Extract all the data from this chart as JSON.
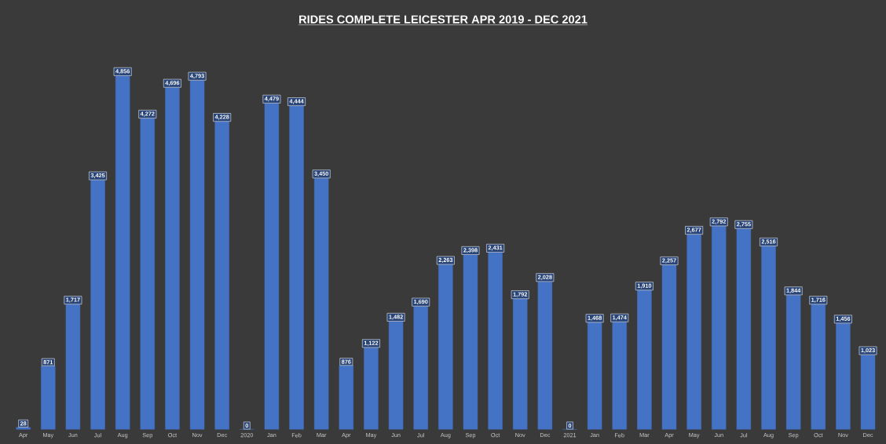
{
  "chart_data": {
    "type": "bar",
    "title": "RIDES COMPLETE LEICESTER APR 2019 - DEC 2021",
    "categories": [
      "Apr",
      "May",
      "Jun",
      "Jul",
      "Aug",
      "Sep",
      "Oct",
      "Nov",
      "Dec",
      "2020",
      "Jan",
      "Feb",
      "Mar",
      "Apr",
      "May",
      "Jun",
      "Jul",
      "Aug",
      "Sep",
      "Oct",
      "Nov",
      "Dec",
      "2021",
      "Jan",
      "Feb",
      "Mar",
      "Apr",
      "May",
      "Jun",
      "Jul",
      "Aug",
      "Sep",
      "Oct",
      "Nov",
      "Dec"
    ],
    "values": [
      28,
      871,
      1717,
      3425,
      4856,
      4272,
      4696,
      4793,
      4228,
      0,
      4479,
      4444,
      3450,
      876,
      1122,
      1482,
      1690,
      2263,
      2398,
      2431,
      1792,
      2028,
      0,
      1468,
      1474,
      1910,
      2257,
      2677,
      2792,
      2755,
      2516,
      1844,
      1716,
      1456,
      1023
    ],
    "value_labels": [
      "28",
      "871",
      "1,717",
      "3,425",
      "4,856",
      "4,272",
      "4,696",
      "4,793",
      "4,228",
      "0",
      "4,479",
      "4,444",
      "3,450",
      "876",
      "1,122",
      "1,482",
      "1,690",
      "2,263",
      "2,398",
      "2,431",
      "1,792",
      "2,028",
      "0",
      "1,468",
      "1,474",
      "1,910",
      "2,257",
      "2,677",
      "2,792",
      "2,755",
      "2,516",
      "1,844",
      "1,716",
      "1,456",
      "1,023"
    ],
    "color": "#4472c4"
  }
}
